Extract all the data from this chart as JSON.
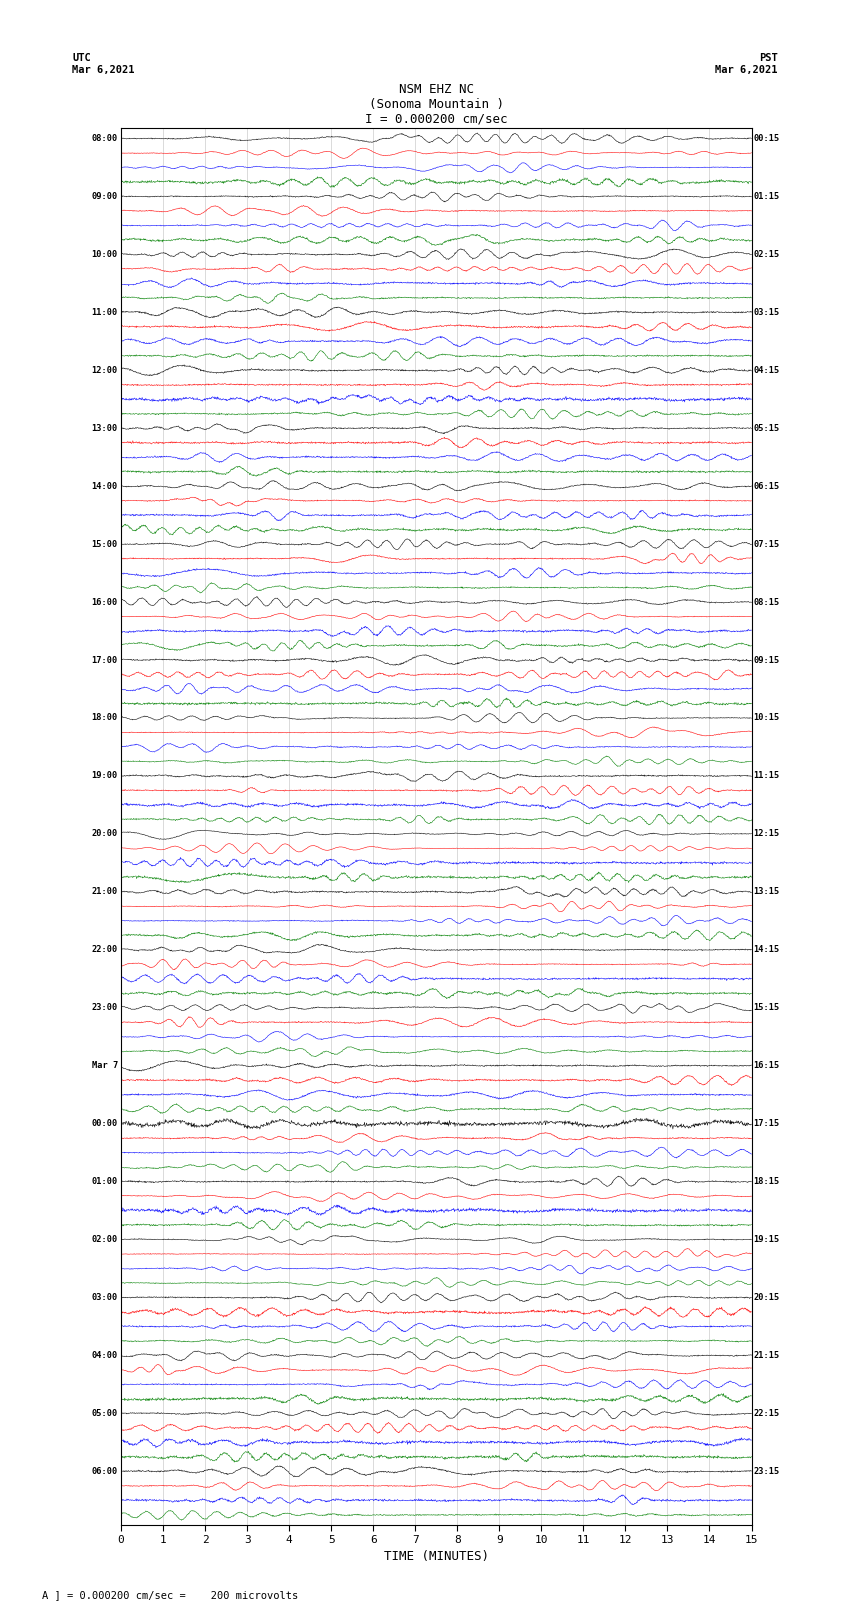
{
  "title_line1": "NSM EHZ NC",
  "title_line2": "(Sonoma Mountain )",
  "title_line3": "I = 0.000200 cm/sec",
  "left_header": "UTC\nMar 6,2021",
  "right_header": "PST\nMar 6,2021",
  "xlabel": "TIME (MINUTES)",
  "footer": "A ] = 0.000200 cm/sec =    200 microvolts",
  "x_min": 0,
  "x_max": 15,
  "x_ticks": [
    0,
    1,
    2,
    3,
    4,
    5,
    6,
    7,
    8,
    9,
    10,
    11,
    12,
    13,
    14,
    15
  ],
  "colors": [
    "black",
    "red",
    "blue",
    "green"
  ],
  "left_times": [
    "08:00",
    "",
    "",
    "",
    "09:00",
    "",
    "",
    "",
    "10:00",
    "",
    "",
    "",
    "11:00",
    "",
    "",
    "",
    "12:00",
    "",
    "",
    "",
    "13:00",
    "",
    "",
    "",
    "14:00",
    "",
    "",
    "",
    "15:00",
    "",
    "",
    "",
    "16:00",
    "",
    "",
    "",
    "17:00",
    "",
    "",
    "",
    "18:00",
    "",
    "",
    "",
    "19:00",
    "",
    "",
    "",
    "20:00",
    "",
    "",
    "",
    "21:00",
    "",
    "",
    "",
    "22:00",
    "",
    "",
    "",
    "23:00",
    "",
    "",
    "",
    "Mar 7",
    "",
    "",
    "",
    "00:00",
    "",
    "",
    "",
    "01:00",
    "",
    "",
    "",
    "02:00",
    "",
    "",
    "",
    "03:00",
    "",
    "",
    "",
    "04:00",
    "",
    "",
    "",
    "05:00",
    "",
    "",
    "",
    "06:00",
    "",
    "",
    ""
  ],
  "right_times": [
    "00:15",
    "",
    "",
    "",
    "01:15",
    "",
    "",
    "",
    "02:15",
    "",
    "",
    "",
    "03:15",
    "",
    "",
    "",
    "04:15",
    "",
    "",
    "",
    "05:15",
    "",
    "",
    "",
    "06:15",
    "",
    "",
    "",
    "07:15",
    "",
    "",
    "",
    "08:15",
    "",
    "",
    "",
    "09:15",
    "",
    "",
    "",
    "10:15",
    "",
    "",
    "",
    "11:15",
    "",
    "",
    "",
    "12:15",
    "",
    "",
    "",
    "13:15",
    "",
    "",
    "",
    "14:15",
    "",
    "",
    "",
    "15:15",
    "",
    "",
    "",
    "16:15",
    "",
    "",
    "",
    "17:15",
    "",
    "",
    "",
    "18:15",
    "",
    "",
    "",
    "19:15",
    "",
    "",
    "",
    "20:15",
    "",
    "",
    "",
    "21:15",
    "",
    "",
    "",
    "22:15",
    "",
    "",
    "",
    "23:15",
    "",
    "",
    ""
  ],
  "n_rows": 96,
  "bg_color": "white",
  "trace_amplitude": 0.38,
  "noise_seed": 42
}
